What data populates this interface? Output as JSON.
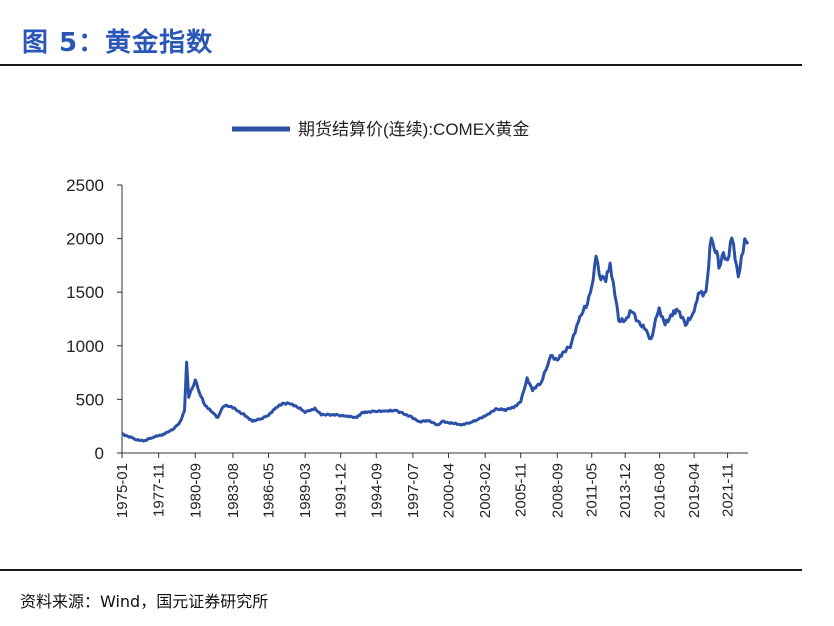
{
  "header": {
    "title": "图 5：黄金指数"
  },
  "footer": {
    "source": "资料来源：Wind，国元证券研究所"
  },
  "chart_data": {
    "type": "line",
    "title": "",
    "xlabel": "",
    "ylabel": "",
    "ylim": [
      0,
      2500
    ],
    "yticks": [
      0,
      500,
      1000,
      1500,
      2000,
      2500
    ],
    "legend_position": "top",
    "grid": false,
    "color": "#2b50a8",
    "x_tick_labels": [
      "1975-01",
      "1977-11",
      "1980-09",
      "1983-08",
      "1986-05",
      "1989-03",
      "1991-12",
      "1994-09",
      "1997-07",
      "2000-04",
      "2003-02",
      "2005-11",
      "2008-09",
      "2011-05",
      "2013-12",
      "2016-08",
      "2019-04",
      "2021-11"
    ],
    "series": [
      {
        "name": "期货结算价(连续):COMEX黄金",
        "x": [
          "1975-01",
          "1976-01",
          "1976-09",
          "1977-06",
          "1978-06",
          "1979-01",
          "1979-07",
          "1979-11",
          "1980-01",
          "1980-03",
          "1980-06",
          "1980-09",
          "1981-01",
          "1981-06",
          "1982-01",
          "1982-06",
          "1982-10",
          "1983-02",
          "1983-08",
          "1984-06",
          "1985-02",
          "1985-10",
          "1986-05",
          "1986-12",
          "1987-06",
          "1987-12",
          "1988-06",
          "1989-03",
          "1989-12",
          "1990-06",
          "1991-01",
          "1991-12",
          "1992-06",
          "1993-03",
          "1993-08",
          "1994-01",
          "1994-09",
          "1995-06",
          "1996-02",
          "1996-09",
          "1997-07",
          "1998-01",
          "1998-09",
          "1999-07",
          "1999-10",
          "2000-04",
          "2001-04",
          "2002-01",
          "2002-09",
          "2003-02",
          "2004-01",
          "2004-09",
          "2005-06",
          "2005-11",
          "2006-05",
          "2006-10",
          "2007-06",
          "2008-03",
          "2008-09",
          "2009-02",
          "2009-09",
          "2010-06",
          "2011-01",
          "2011-05",
          "2011-09",
          "2011-12",
          "2012-06",
          "2012-10",
          "2013-04",
          "2013-06",
          "2013-12",
          "2014-06",
          "2015-01",
          "2015-06",
          "2015-12",
          "2016-07",
          "2016-08",
          "2017-01",
          "2017-09",
          "2018-01",
          "2018-08",
          "2019-04",
          "2019-08",
          "2020-03",
          "2020-08",
          "2020-11",
          "2021-01",
          "2021-03",
          "2021-06",
          "2021-11",
          "2022-03",
          "2022-09",
          "2023-03",
          "2023-06"
        ],
        "y": [
          180,
          130,
          110,
          145,
          185,
          230,
          290,
          400,
          830,
          520,
          600,
          690,
          560,
          440,
          380,
          330,
          430,
          440,
          420,
          360,
          300,
          320,
          350,
          420,
          460,
          470,
          440,
          380,
          410,
          360,
          360,
          350,
          340,
          330,
          380,
          385,
          390,
          385,
          400,
          375,
          330,
          290,
          300,
          260,
          300,
          285,
          260,
          285,
          320,
          350,
          410,
          400,
          430,
          480,
          700,
          590,
          650,
          900,
          870,
          940,
          1000,
          1250,
          1400,
          1530,
          1880,
          1650,
          1600,
          1750,
          1400,
          1250,
          1230,
          1320,
          1200,
          1180,
          1060,
          1350,
          1310,
          1200,
          1330,
          1340,
          1190,
          1300,
          1500,
          1500,
          2050,
          1850,
          1890,
          1700,
          1880,
          1800,
          2000,
          1630,
          1990,
          1950
        ]
      }
    ]
  }
}
